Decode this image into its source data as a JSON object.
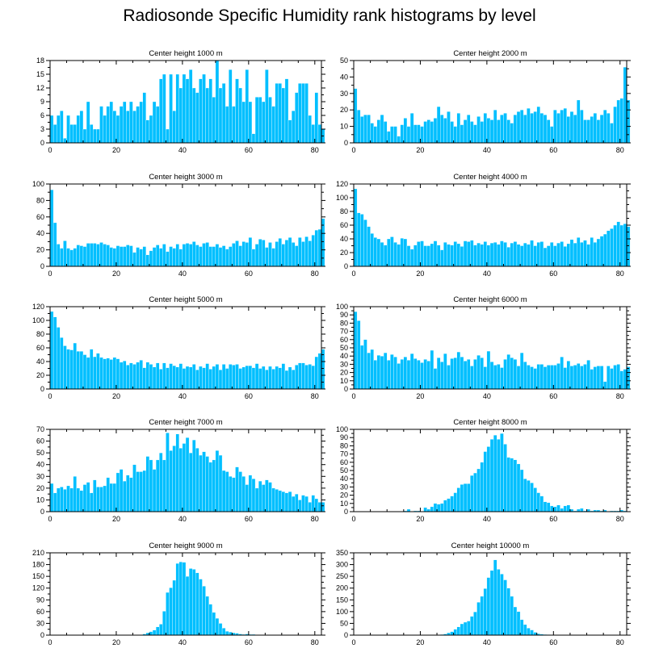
{
  "title": "Radiosonde Specific Humidity rank histograms by level",
  "colors": {
    "bar": "#00bfff",
    "axis": "#000000",
    "background": "#ffffff"
  },
  "chart_data": [
    {
      "type": "bar",
      "title": "Center height 1000 m",
      "xlim": [
        0,
        82
      ],
      "xticks": [
        0,
        20,
        40,
        60,
        80
      ],
      "ylim": [
        0,
        18
      ],
      "yticks": [
        0,
        3,
        6,
        9,
        12,
        15,
        18
      ],
      "values": [
        6,
        4,
        6,
        7,
        1,
        6,
        4,
        4,
        6,
        7,
        3,
        9,
        4,
        3,
        3,
        8,
        6,
        8,
        9,
        7,
        6,
        8,
        9,
        7,
        9,
        7,
        8,
        9,
        11,
        5,
        6,
        9,
        8,
        14,
        15,
        3,
        15,
        7,
        15,
        12,
        15,
        14,
        16,
        12,
        11,
        14,
        15,
        12,
        14,
        10,
        18,
        12,
        13,
        8,
        16,
        8,
        14,
        12,
        9,
        16,
        9,
        2,
        10,
        10,
        9,
        16,
        10,
        8,
        13,
        13,
        12,
        14,
        5,
        7,
        11,
        13,
        13,
        13,
        6,
        4,
        11,
        4,
        3
      ]
    },
    {
      "type": "bar",
      "title": "Center height 2000 m",
      "xlim": [
        0,
        82
      ],
      "xticks": [
        0,
        20,
        40,
        60,
        80
      ],
      "ylim": [
        0,
        50
      ],
      "yticks": [
        0,
        10,
        20,
        30,
        40,
        50
      ],
      "values": [
        33,
        20,
        16,
        17,
        17,
        12,
        10,
        14,
        17,
        13,
        7,
        10,
        10,
        4,
        11,
        15,
        10,
        18,
        11,
        11,
        10,
        13,
        14,
        13,
        15,
        22,
        17,
        15,
        19,
        13,
        10,
        18,
        11,
        14,
        17,
        13,
        11,
        16,
        13,
        18,
        15,
        14,
        20,
        14,
        17,
        18,
        14,
        12,
        17,
        19,
        20,
        17,
        21,
        18,
        19,
        22,
        18,
        17,
        14,
        10,
        20,
        18,
        20,
        21,
        16,
        19,
        17,
        26,
        20,
        14,
        14,
        16,
        18,
        14,
        17,
        20,
        18,
        12,
        22,
        26,
        27,
        46,
        26
      ]
    },
    {
      "type": "bar",
      "title": "Center height 3000 m",
      "xlim": [
        0,
        82
      ],
      "xticks": [
        0,
        20,
        40,
        60,
        80
      ],
      "ylim": [
        0,
        100
      ],
      "yticks": [
        0,
        20,
        40,
        60,
        80,
        100
      ],
      "values": [
        93,
        53,
        27,
        22,
        31,
        22,
        20,
        22,
        26,
        25,
        24,
        28,
        28,
        28,
        27,
        29,
        27,
        26,
        23,
        22,
        25,
        24,
        24,
        26,
        25,
        17,
        23,
        21,
        24,
        14,
        19,
        23,
        26,
        22,
        27,
        18,
        24,
        22,
        27,
        21,
        27,
        28,
        27,
        30,
        26,
        24,
        28,
        29,
        24,
        24,
        27,
        23,
        25,
        21,
        24,
        28,
        31,
        25,
        30,
        29,
        35,
        21,
        27,
        33,
        32,
        23,
        29,
        22,
        30,
        34,
        27,
        32,
        35,
        29,
        25,
        35,
        30,
        36,
        31,
        38,
        44,
        45,
        58
      ]
    },
    {
      "type": "bar",
      "title": "Center height 4000 m",
      "xlim": [
        0,
        82
      ],
      "xticks": [
        0,
        20,
        40,
        60,
        80
      ],
      "ylim": [
        0,
        120
      ],
      "yticks": [
        0,
        20,
        40,
        60,
        80,
        100,
        120
      ],
      "values": [
        113,
        78,
        76,
        68,
        58,
        48,
        42,
        40,
        35,
        31,
        40,
        43,
        35,
        32,
        41,
        40,
        30,
        25,
        31,
        36,
        37,
        30,
        30,
        33,
        37,
        31,
        24,
        35,
        32,
        31,
        36,
        33,
        29,
        37,
        36,
        38,
        31,
        34,
        32,
        36,
        31,
        34,
        35,
        32,
        37,
        35,
        28,
        34,
        36,
        32,
        30,
        34,
        32,
        38,
        30,
        35,
        36,
        27,
        30,
        35,
        30,
        34,
        36,
        29,
        33,
        39,
        34,
        42,
        35,
        38,
        32,
        42,
        35,
        40,
        44,
        47,
        52,
        55,
        60,
        65,
        60,
        62,
        58
      ]
    },
    {
      "type": "bar",
      "title": "Center height 5000 m",
      "xlim": [
        0,
        82
      ],
      "xticks": [
        0,
        20,
        40,
        60,
        80
      ],
      "ylim": [
        0,
        120
      ],
      "yticks": [
        0,
        20,
        40,
        60,
        80,
        100,
        120
      ],
      "values": [
        113,
        105,
        90,
        75,
        63,
        58,
        57,
        67,
        55,
        55,
        50,
        46,
        58,
        47,
        52,
        46,
        44,
        45,
        43,
        46,
        44,
        39,
        41,
        35,
        38,
        36,
        39,
        42,
        31,
        39,
        36,
        32,
        38,
        29,
        38,
        31,
        37,
        34,
        32,
        37,
        30,
        33,
        32,
        36,
        28,
        33,
        31,
        37,
        29,
        33,
        36,
        28,
        36,
        30,
        36,
        35,
        36,
        30,
        32,
        34,
        34,
        31,
        37,
        30,
        33,
        28,
        33,
        29,
        33,
        31,
        37,
        27,
        32,
        28,
        35,
        38,
        38,
        35,
        36,
        34,
        47,
        52,
        58
      ]
    },
    {
      "type": "bar",
      "title": "Center height 6000 m",
      "xlim": [
        0,
        82
      ],
      "xticks": [
        0,
        20,
        40,
        60,
        80
      ],
      "ylim": [
        0,
        100
      ],
      "yticks": [
        0,
        10,
        20,
        30,
        40,
        50,
        60,
        70,
        80,
        90,
        100
      ],
      "values": [
        94,
        83,
        53,
        60,
        44,
        48,
        35,
        41,
        40,
        44,
        35,
        42,
        39,
        31,
        36,
        39,
        35,
        43,
        37,
        35,
        32,
        36,
        34,
        47,
        25,
        38,
        33,
        43,
        29,
        37,
        38,
        45,
        39,
        34,
        36,
        28,
        36,
        41,
        38,
        27,
        46,
        33,
        29,
        30,
        26,
        36,
        42,
        38,
        36,
        28,
        44,
        33,
        29,
        27,
        25,
        30,
        30,
        27,
        29,
        29,
        29,
        31,
        39,
        26,
        34,
        28,
        29,
        31,
        28,
        30,
        35,
        24,
        27,
        28,
        28,
        9,
        28,
        25,
        29,
        30,
        22,
        24,
        27
      ]
    },
    {
      "type": "bar",
      "title": "Center height 7000 m",
      "xlim": [
        0,
        82
      ],
      "xticks": [
        0,
        20,
        40,
        60,
        80
      ],
      "ylim": [
        0,
        70
      ],
      "yticks": [
        0,
        10,
        20,
        30,
        40,
        50,
        60,
        70
      ],
      "values": [
        24,
        16,
        20,
        21,
        19,
        22,
        20,
        30,
        20,
        18,
        23,
        25,
        16,
        27,
        21,
        21,
        22,
        29,
        24,
        24,
        33,
        36,
        26,
        31,
        29,
        40,
        34,
        34,
        35,
        47,
        44,
        36,
        44,
        50,
        44,
        67,
        52,
        56,
        66,
        54,
        58,
        63,
        50,
        61,
        54,
        48,
        51,
        47,
        42,
        44,
        52,
        48,
        35,
        34,
        30,
        29,
        38,
        34,
        30,
        23,
        31,
        28,
        20,
        26,
        23,
        27,
        25,
        20,
        19,
        18,
        17,
        16,
        17,
        13,
        15,
        10,
        14,
        13,
        8,
        14,
        11,
        8,
        8
      ]
    },
    {
      "type": "bar",
      "title": "Center height 8000 m",
      "xlim": [
        0,
        82
      ],
      "xticks": [
        0,
        20,
        40,
        60,
        80
      ],
      "ylim": [
        0,
        100
      ],
      "yticks": [
        0,
        10,
        20,
        30,
        40,
        50,
        60,
        70,
        80,
        90,
        100
      ],
      "values": [
        0,
        0,
        0,
        0,
        0,
        0,
        0,
        0,
        0,
        0,
        0,
        0,
        0,
        0,
        0,
        1,
        3,
        0,
        1,
        1,
        0,
        5,
        3,
        6,
        10,
        9,
        10,
        14,
        16,
        19,
        23,
        29,
        33,
        34,
        34,
        44,
        47,
        52,
        60,
        73,
        79,
        88,
        93,
        88,
        95,
        82,
        66,
        65,
        63,
        58,
        51,
        40,
        38,
        35,
        29,
        23,
        19,
        12,
        11,
        7,
        6,
        8,
        4,
        7,
        8,
        3,
        1,
        3,
        4,
        1,
        3,
        1,
        2,
        2,
        1,
        2,
        0,
        1,
        1,
        1,
        2,
        1,
        0
      ]
    },
    {
      "type": "bar",
      "title": "Center height 9000 m",
      "xlim": [
        0,
        82
      ],
      "xticks": [
        0,
        20,
        40,
        60,
        80
      ],
      "ylim": [
        0,
        210
      ],
      "yticks": [
        0,
        30,
        60,
        90,
        120,
        150,
        180,
        210
      ],
      "values": [
        0,
        0,
        0,
        0,
        0,
        0,
        0,
        0,
        0,
        0,
        0,
        0,
        0,
        0,
        0,
        0,
        0,
        0,
        0,
        0,
        0,
        0,
        0,
        0,
        0,
        0,
        0,
        1,
        3,
        6,
        9,
        13,
        21,
        28,
        61,
        109,
        121,
        140,
        183,
        187,
        186,
        150,
        170,
        168,
        159,
        143,
        125,
        99,
        79,
        58,
        43,
        30,
        18,
        10,
        8,
        6,
        5,
        3,
        2,
        3,
        2,
        2,
        1,
        1,
        1,
        1,
        0,
        0,
        1,
        0,
        0,
        0,
        0,
        0,
        0,
        0,
        0,
        0,
        0,
        0,
        0,
        0,
        0
      ]
    },
    {
      "type": "bar",
      "title": "Center height 10000 m",
      "xlim": [
        0,
        82
      ],
      "xticks": [
        0,
        20,
        40,
        60,
        80
      ],
      "ylim": [
        0,
        350
      ],
      "yticks": [
        0,
        50,
        100,
        150,
        200,
        250,
        300,
        350
      ],
      "values": [
        0,
        0,
        0,
        0,
        0,
        0,
        0,
        0,
        0,
        0,
        0,
        0,
        0,
        0,
        0,
        0,
        0,
        0,
        0,
        0,
        0,
        0,
        0,
        0,
        0,
        0,
        3,
        5,
        10,
        15,
        25,
        35,
        48,
        55,
        60,
        80,
        99,
        140,
        165,
        198,
        245,
        275,
        320,
        280,
        260,
        235,
        200,
        165,
        120,
        100,
        66,
        45,
        30,
        22,
        12,
        6,
        4,
        3,
        2,
        1,
        1,
        0,
        0,
        0,
        0,
        0,
        0,
        0,
        0,
        0,
        0,
        0,
        0,
        0,
        0,
        0,
        0,
        0,
        0,
        0,
        0,
        0,
        0
      ]
    }
  ]
}
